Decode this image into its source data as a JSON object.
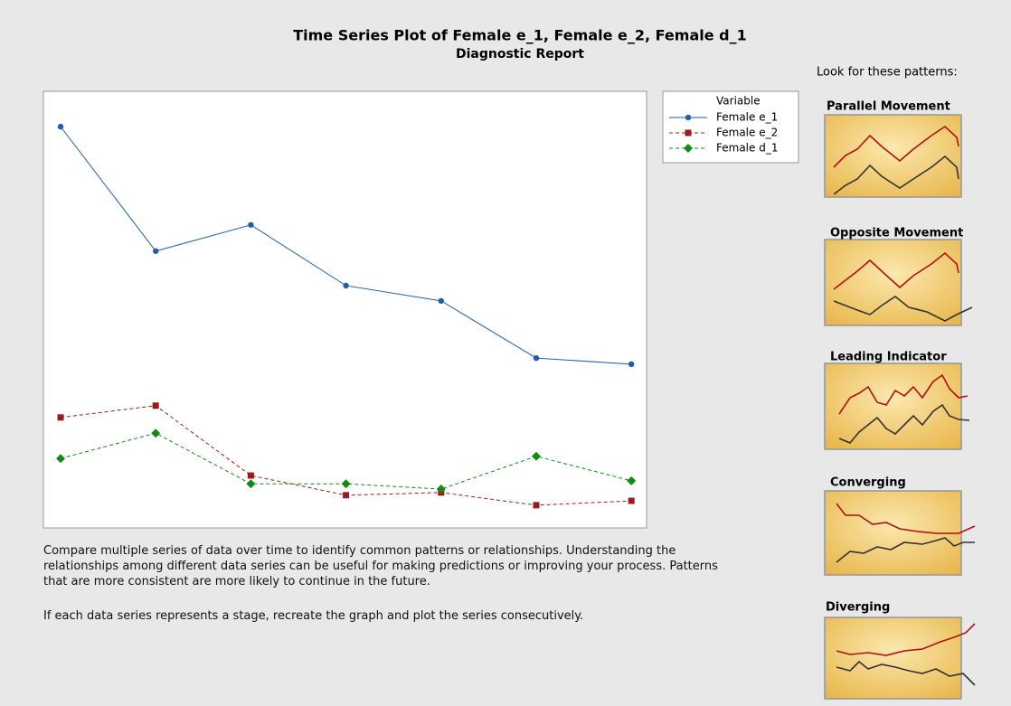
{
  "chart_data": {
    "type": "line",
    "title": "Time Series Plot of Female e_1, Female e_2, Female d_1",
    "subtitle": "Diagnostic Report",
    "legend_title": "Variable",
    "categories": [
      null,
      null,
      null,
      null,
      null,
      null,
      null
    ],
    "ylim": [
      0,
      100
    ],
    "series": [
      {
        "name": "Female e_1",
        "color": "#1f5fa8",
        "marker": "circle",
        "dashed": false,
        "values": [
          91.9,
          63.4,
          69.4,
          55.5,
          52.0,
          38.9,
          37.5
        ]
      },
      {
        "name": "Female e_2",
        "color": "#9b1b1b",
        "marker": "square",
        "dashed": true,
        "values": [
          25.3,
          28.0,
          12.0,
          7.5,
          8.1,
          5.2,
          6.2
        ]
      },
      {
        "name": "Female d_1",
        "color": "#138a13",
        "marker": "diamond",
        "dashed": true,
        "values": [
          15.9,
          21.7,
          10.1,
          10.1,
          8.9,
          16.4,
          10.8
        ]
      }
    ]
  },
  "description": [
    "Compare multiple series of data over time to identify common patterns or relationships. Understanding the relationships among different data series can be useful for making predictions or improving your process. Patterns that are more consistent are more likely to continue in the future.",
    "If each data series represents a stage, recreate the graph and plot the series consecutively."
  ],
  "patterns": {
    "heading": "Look for these patterns:",
    "items": [
      "Parallel Movement",
      "Opposite Movement",
      "Leading Indicator",
      "Converging",
      "Diverging"
    ]
  }
}
